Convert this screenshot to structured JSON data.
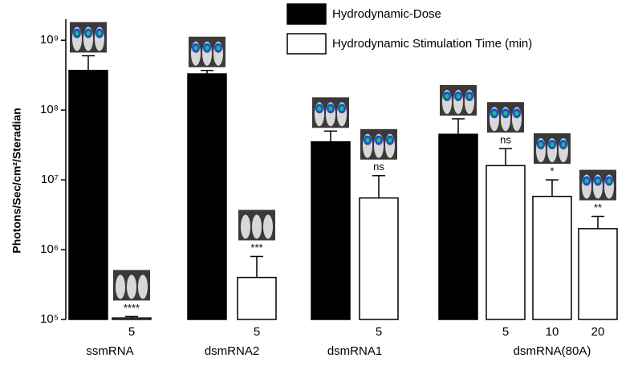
{
  "chart_data": {
    "type": "bar",
    "log_scale": true,
    "y_label": "Photons/Sec/cm²/Steradian",
    "ylim": [
      100000,
      2000000000
    ],
    "yticks": [
      {
        "value": 100000,
        "label": "10⁵"
      },
      {
        "value": 1000000,
        "label": "10⁶"
      },
      {
        "value": 10000000,
        "label": "10⁷"
      },
      {
        "value": 100000000,
        "label": "10⁸"
      },
      {
        "value": 1000000000,
        "label": "10⁹"
      }
    ],
    "series": [
      {
        "name": "Hydrodynamic-Dose",
        "color": "#000000"
      },
      {
        "name": "Hydrodynamic Stimulation Time (min)",
        "color": "#ffffff"
      }
    ],
    "groups": [
      {
        "name": "ssmRNA",
        "dose": {
          "value": 370000000,
          "error": 230000000
        },
        "times": [
          {
            "time": 5,
            "value": 105000,
            "error": 5000,
            "significance": "****"
          }
        ]
      },
      {
        "name": "dsmRNA2",
        "dose": {
          "value": 330000000,
          "error": 40000000
        },
        "times": [
          {
            "time": 5,
            "value": 400000,
            "error": 400000,
            "significance": "***"
          }
        ]
      },
      {
        "name": "dsmRNA1",
        "dose": {
          "value": 35000000,
          "error": 15000000
        },
        "times": [
          {
            "time": 5,
            "value": 5500000,
            "error": 6000000,
            "significance": "ns"
          }
        ]
      },
      {
        "name": "dsmRNA(80A)",
        "dose": {
          "value": 45000000,
          "error": 30000000
        },
        "times": [
          {
            "time": 5,
            "value": 16000000,
            "error": 12000000,
            "significance": "ns"
          },
          {
            "time": 10,
            "value": 5800000,
            "error": 4200000,
            "significance": "*"
          },
          {
            "time": 20,
            "value": 2000000,
            "error": 1000000,
            "significance": "**"
          }
        ]
      }
    ]
  }
}
